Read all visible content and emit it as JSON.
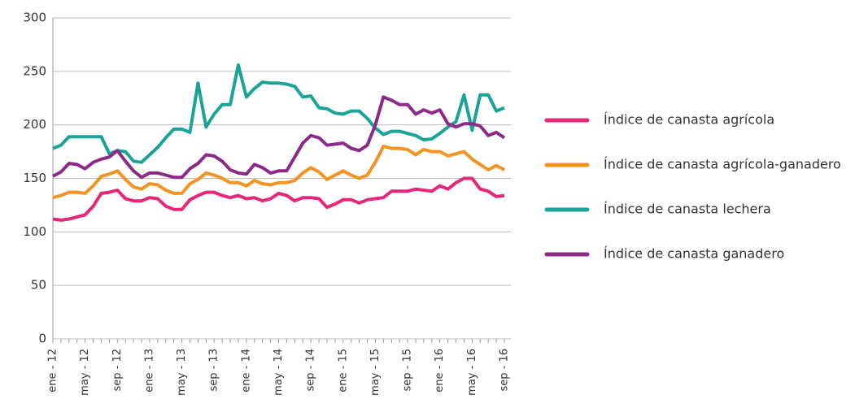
{
  "chart_data": {
    "type": "line",
    "categories": [
      "ene - 12",
      null,
      null,
      null,
      "may - 12",
      null,
      null,
      null,
      "sep - 12",
      null,
      null,
      null,
      "ene - 13",
      null,
      null,
      null,
      "may - 13",
      null,
      null,
      null,
      "sep - 13",
      null,
      null,
      null,
      "ene - 14",
      null,
      null,
      null,
      "may - 14",
      null,
      null,
      null,
      "sep - 14",
      null,
      null,
      null,
      "ene - 15",
      null,
      null,
      null,
      "may - 15",
      null,
      null,
      null,
      "sep - 15",
      null,
      null,
      null,
      "ene - 16",
      null,
      null,
      null,
      "may - 16",
      null,
      null,
      null,
      "sep - 16"
    ],
    "series": [
      {
        "name": "Índice de canasta agrícola",
        "color": "#e5267a",
        "values": [
          112,
          111,
          112,
          114,
          116,
          124,
          136,
          137,
          139,
          131,
          129,
          129,
          132,
          131,
          124,
          121,
          121,
          130,
          134,
          137,
          137,
          134,
          132,
          134,
          131,
          132,
          129,
          131,
          136,
          134,
          129,
          132,
          132,
          131,
          123,
          126,
          130,
          130,
          127,
          130,
          131,
          132,
          138,
          138,
          138,
          140,
          139,
          138,
          143,
          140,
          146,
          150,
          150,
          140,
          138,
          133,
          134
        ]
      },
      {
        "name": "Índice de canasta agrícola-ganadero",
        "color": "#f39322",
        "values": [
          132,
          134,
          137,
          137,
          136,
          143,
          152,
          154,
          157,
          149,
          142,
          140,
          145,
          144,
          139,
          136,
          136,
          145,
          149,
          155,
          153,
          150,
          146,
          146,
          143,
          148,
          145,
          144,
          146,
          146,
          148,
          155,
          160,
          156,
          149,
          153,
          157,
          153,
          150,
          153,
          165,
          180,
          178,
          178,
          177,
          172,
          177,
          175,
          175,
          171,
          173,
          175,
          168,
          163,
          158,
          162,
          158
        ]
      },
      {
        "name": "Índice de canasta lechera",
        "color": "#1aa399",
        "values": [
          178,
          181,
          189,
          189,
          189,
          189,
          189,
          173,
          176,
          175,
          166,
          165,
          172,
          179,
          188,
          196,
          196,
          193,
          239,
          198,
          210,
          219,
          219,
          256,
          226,
          234,
          240,
          239,
          239,
          238,
          236,
          226,
          227,
          216,
          215,
          211,
          210,
          213,
          213,
          206,
          197,
          191,
          194,
          194,
          192,
          190,
          186,
          187,
          192,
          198,
          203,
          228,
          195,
          228,
          228,
          213,
          216
        ]
      },
      {
        "name": "Índice de canasta ganadero",
        "color": "#8b2a87",
        "values": [
          152,
          156,
          164,
          163,
          159,
          165,
          168,
          170,
          176,
          166,
          157,
          151,
          155,
          155,
          153,
          151,
          151,
          159,
          164,
          172,
          171,
          166,
          158,
          155,
          154,
          163,
          160,
          155,
          157,
          157,
          170,
          183,
          190,
          188,
          181,
          182,
          183,
          178,
          176,
          181,
          200,
          226,
          223,
          219,
          219,
          210,
          214,
          211,
          214,
          201,
          198,
          201,
          201,
          199,
          190,
          193,
          188
        ]
      }
    ],
    "ylim": [
      0,
      300
    ],
    "yticks": [
      0,
      50,
      100,
      150,
      200,
      250,
      300
    ],
    "grid": true,
    "legend": "right"
  }
}
